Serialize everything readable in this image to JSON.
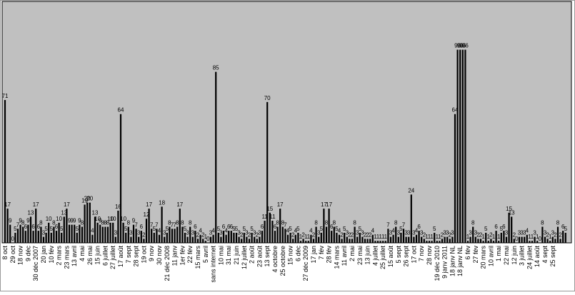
{
  "chart_data": {
    "type": "bar",
    "color": "#000000",
    "background": "#c0c0c0",
    "ylim": [
      0,
      120
    ],
    "categories": [
      "8 oct",
      null,
      null,
      "29 oct",
      null,
      null,
      "18 nov",
      null,
      null,
      "9 déc",
      null,
      null,
      "30 déc 2007",
      null,
      null,
      "20 jan",
      null,
      null,
      "10 fév",
      null,
      null,
      "2 mars",
      null,
      null,
      "23 mars",
      null,
      null,
      "13 avril",
      null,
      null,
      "4 mai",
      null,
      null,
      "26 mai",
      null,
      null,
      "15 juin",
      null,
      null,
      "6 juillet",
      null,
      null,
      "27 juillet",
      null,
      null,
      "17 août",
      null,
      null,
      "7 sept",
      null,
      null,
      "28 sept",
      null,
      null,
      "19 oct",
      null,
      null,
      "9 nov",
      null,
      null,
      "30 nov",
      null,
      null,
      "21 déc 2008",
      null,
      null,
      "11 janv",
      null,
      null,
      "1er fév",
      null,
      null,
      "22 fév",
      null,
      null,
      "15 mars",
      null,
      null,
      "5 avril",
      null,
      null,
      "sans internet",
      null,
      null,
      "10 mai",
      null,
      null,
      "31 mai",
      null,
      null,
      "21 juin",
      null,
      null,
      "12 juillet",
      null,
      null,
      "2 août",
      null,
      null,
      "23 août",
      null,
      null,
      "13 sept",
      null,
      null,
      "4 octobre",
      null,
      null,
      "25 octobre",
      null,
      null,
      "15 nov",
      null,
      null,
      "6 déc",
      null,
      null,
      "27 déc 2009",
      null,
      null,
      "17 jan",
      null,
      null,
      "7 fév",
      null,
      null,
      "28 fév",
      null,
      null,
      "14 mars",
      null,
      null,
      "11 avril",
      null,
      null,
      "2 mai",
      null,
      null,
      "23 mai",
      null,
      null,
      "13 juin",
      null,
      null,
      "4 juillet",
      null,
      null,
      "25 juillet",
      null,
      null,
      "15 août",
      null,
      null,
      "5 sept",
      null,
      null,
      "26 sept",
      null,
      null,
      "17 oct",
      null,
      null,
      "7 nov",
      null,
      null,
      "28 nov",
      null,
      null,
      "19 déc 2010",
      null,
      null,
      "9 janv 2011",
      null,
      null,
      "18 janv NL",
      null,
      null,
      "18 janv NL",
      null,
      null,
      "6 fév",
      null,
      null,
      "27 fév",
      null,
      null,
      "20 mars",
      null,
      null,
      "10 avril",
      null,
      null,
      "1 mai",
      null,
      null,
      "22 mai",
      null,
      null,
      "12 juin",
      null,
      null,
      "3 juillet",
      null,
      null,
      "24 juillet",
      null,
      null,
      "14 août",
      null,
      null,
      "4 sept",
      null,
      null,
      "25 sept",
      null,
      null,
      null,
      null,
      null
    ],
    "values": [
      71,
      17,
      9,
      0,
      5,
      7,
      9,
      8,
      6,
      9,
      13,
      6,
      17,
      6,
      8,
      3,
      5,
      10,
      5,
      8,
      6,
      10,
      5,
      13,
      17,
      9,
      9,
      9,
      5,
      9,
      8,
      19,
      20,
      20,
      4,
      13,
      10,
      9,
      8,
      8,
      8,
      10,
      10,
      3,
      16,
      64,
      10,
      5,
      8,
      3,
      9,
      7,
      3,
      6,
      2,
      12,
      17,
      7,
      5,
      7,
      4,
      18,
      3,
      5,
      8,
      7,
      7,
      8,
      17,
      8,
      5,
      3,
      8,
      3,
      6,
      2,
      4,
      2,
      1,
      0,
      3,
      4,
      85,
      5,
      3,
      6,
      4,
      6,
      6,
      5,
      5,
      3,
      2,
      5,
      3,
      2,
      5,
      3,
      2,
      3,
      6,
      11,
      70,
      15,
      11,
      6,
      8,
      17,
      8,
      7,
      4,
      5,
      2,
      4,
      5,
      1,
      2,
      1,
      1,
      4,
      2,
      8,
      3,
      5,
      17,
      8,
      17,
      6,
      8,
      5,
      4,
      2,
      5,
      3,
      2,
      2,
      8,
      3,
      5,
      3,
      2,
      2,
      2,
      4,
      1,
      1,
      1,
      1,
      1,
      7,
      3,
      4,
      8,
      3,
      5,
      7,
      3,
      3,
      24,
      3,
      4,
      6,
      3,
      2,
      1,
      1,
      1,
      5,
      1,
      1,
      2,
      3,
      3,
      2,
      3,
      64,
      96,
      96,
      96,
      96,
      1,
      3,
      8,
      3,
      2,
      2,
      1,
      5,
      1,
      2,
      1,
      6,
      1,
      5,
      6,
      3,
      15,
      13,
      2,
      0,
      3,
      3,
      3,
      4,
      1,
      1,
      3,
      1,
      0,
      8,
      3,
      2,
      1,
      3,
      2,
      8,
      2,
      6,
      5
    ]
  }
}
